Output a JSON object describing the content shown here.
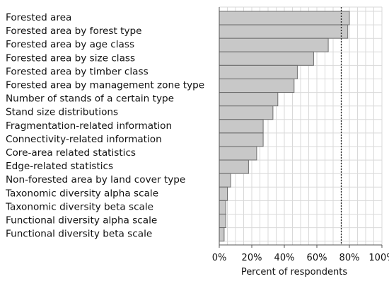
{
  "chart_data": {
    "type": "bar",
    "orientation": "horizontal",
    "categories": [
      "Forested area",
      "Forested area by forest type",
      "Forested area by age class",
      "Forested area by size class",
      "Forested area by timber class",
      "Forested area by management zone type",
      "Number of stands of a certain type",
      "Stand size distributions",
      "Fragmentation-related information",
      "Connectivity-related information",
      "Core-area related statistics",
      "Edge-related statistics",
      "Non-forested area by land cover type",
      "Taxonomic diversity alpha scale",
      "Taxonomic diversity beta scale",
      "Functional diversity alpha scale",
      "Functional diversity beta scale"
    ],
    "values": [
      80,
      79,
      67,
      58,
      48,
      46,
      36,
      33,
      27,
      27,
      23,
      18,
      7,
      5,
      4,
      4,
      3
    ],
    "xlabel": "Percent of respondents",
    "xlim": [
      0,
      100
    ],
    "xticks": [
      "0%",
      "20%",
      "40%",
      "60%",
      "80%",
      "100%"
    ],
    "xtick_values": [
      0,
      20,
      40,
      60,
      80,
      100
    ],
    "reference_line": {
      "value": 75,
      "style": "dotted"
    },
    "grid": true,
    "bar_color": "#c8c8c8",
    "bar_edge_color": "#6e6e6e",
    "grid_color": "#d9d9d9"
  }
}
